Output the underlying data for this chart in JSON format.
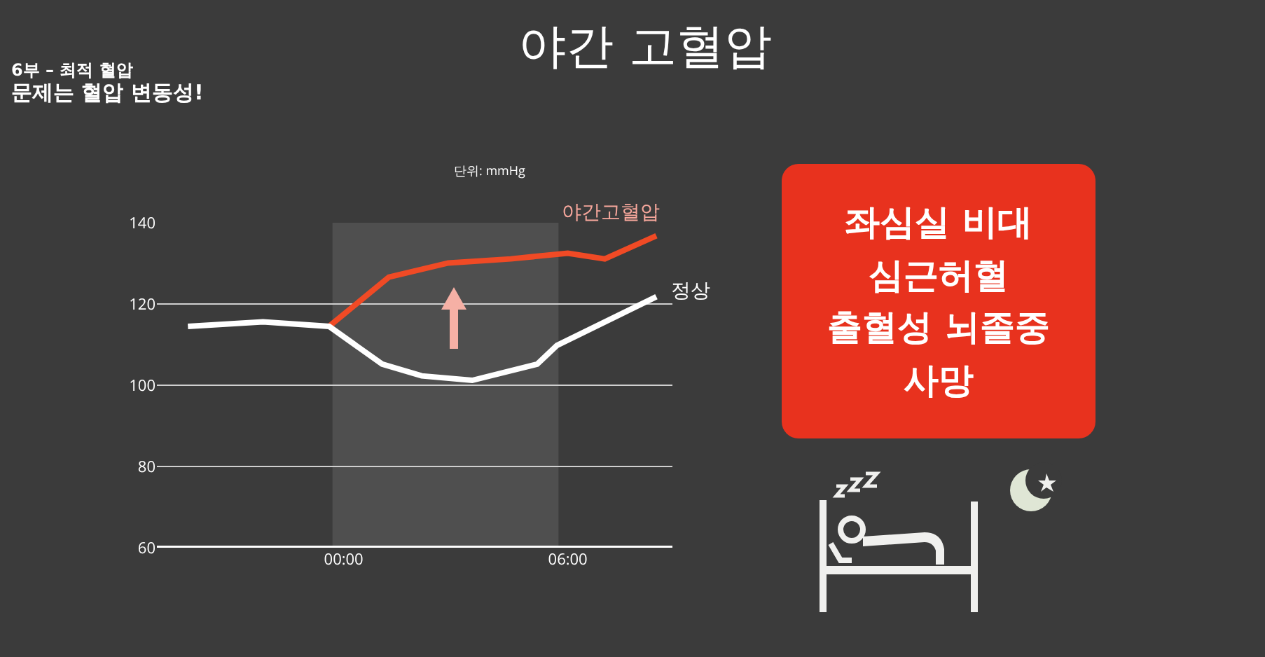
{
  "chart_data": {
    "type": "line",
    "title": "야간 고혈압",
    "subtitle": "단위: mmHg",
    "xlim": [
      -5,
      8.8
    ],
    "xticks": [
      {
        "value": 0,
        "label": "00:00"
      },
      {
        "value": 6,
        "label": "06:00"
      }
    ],
    "ylim": [
      60,
      140
    ],
    "yticks": [
      60,
      80,
      100,
      120,
      140
    ],
    "grid": "y",
    "legend": false,
    "marker": "none",
    "line_style": "solid",
    "series": [
      {
        "name": "야간고혈압",
        "color": "#f04a25",
        "x": [
          -0.39,
          1.21,
          2.8,
          4.47,
          6.0,
          6.99,
          8.37
        ],
        "values": [
          114.5,
          126.6,
          130.1,
          131.1,
          132.5,
          131.1,
          136.8
        ]
      },
      {
        "name": "정상",
        "color": "#ffffff",
        "x": [
          -4.17,
          -2.16,
          -0.39,
          1.03,
          2.09,
          3.44,
          5.18,
          5.71,
          8.37
        ],
        "values": [
          114.5,
          115.6,
          114.5,
          105.2,
          102.3,
          101.2,
          105.2,
          109.8,
          121.8
        ]
      }
    ],
    "bands": [
      {
        "axis": "x",
        "from": -0.3,
        "to": 5.75,
        "color": "#5e5e5e"
      }
    ],
    "annotations": [
      "6부 – 최적 혈압",
      "문제는 혈압 변동성!",
      "좌심실 비대\n심근허혈\n출혈성 뇌졸중\n사망"
    ]
  }
}
